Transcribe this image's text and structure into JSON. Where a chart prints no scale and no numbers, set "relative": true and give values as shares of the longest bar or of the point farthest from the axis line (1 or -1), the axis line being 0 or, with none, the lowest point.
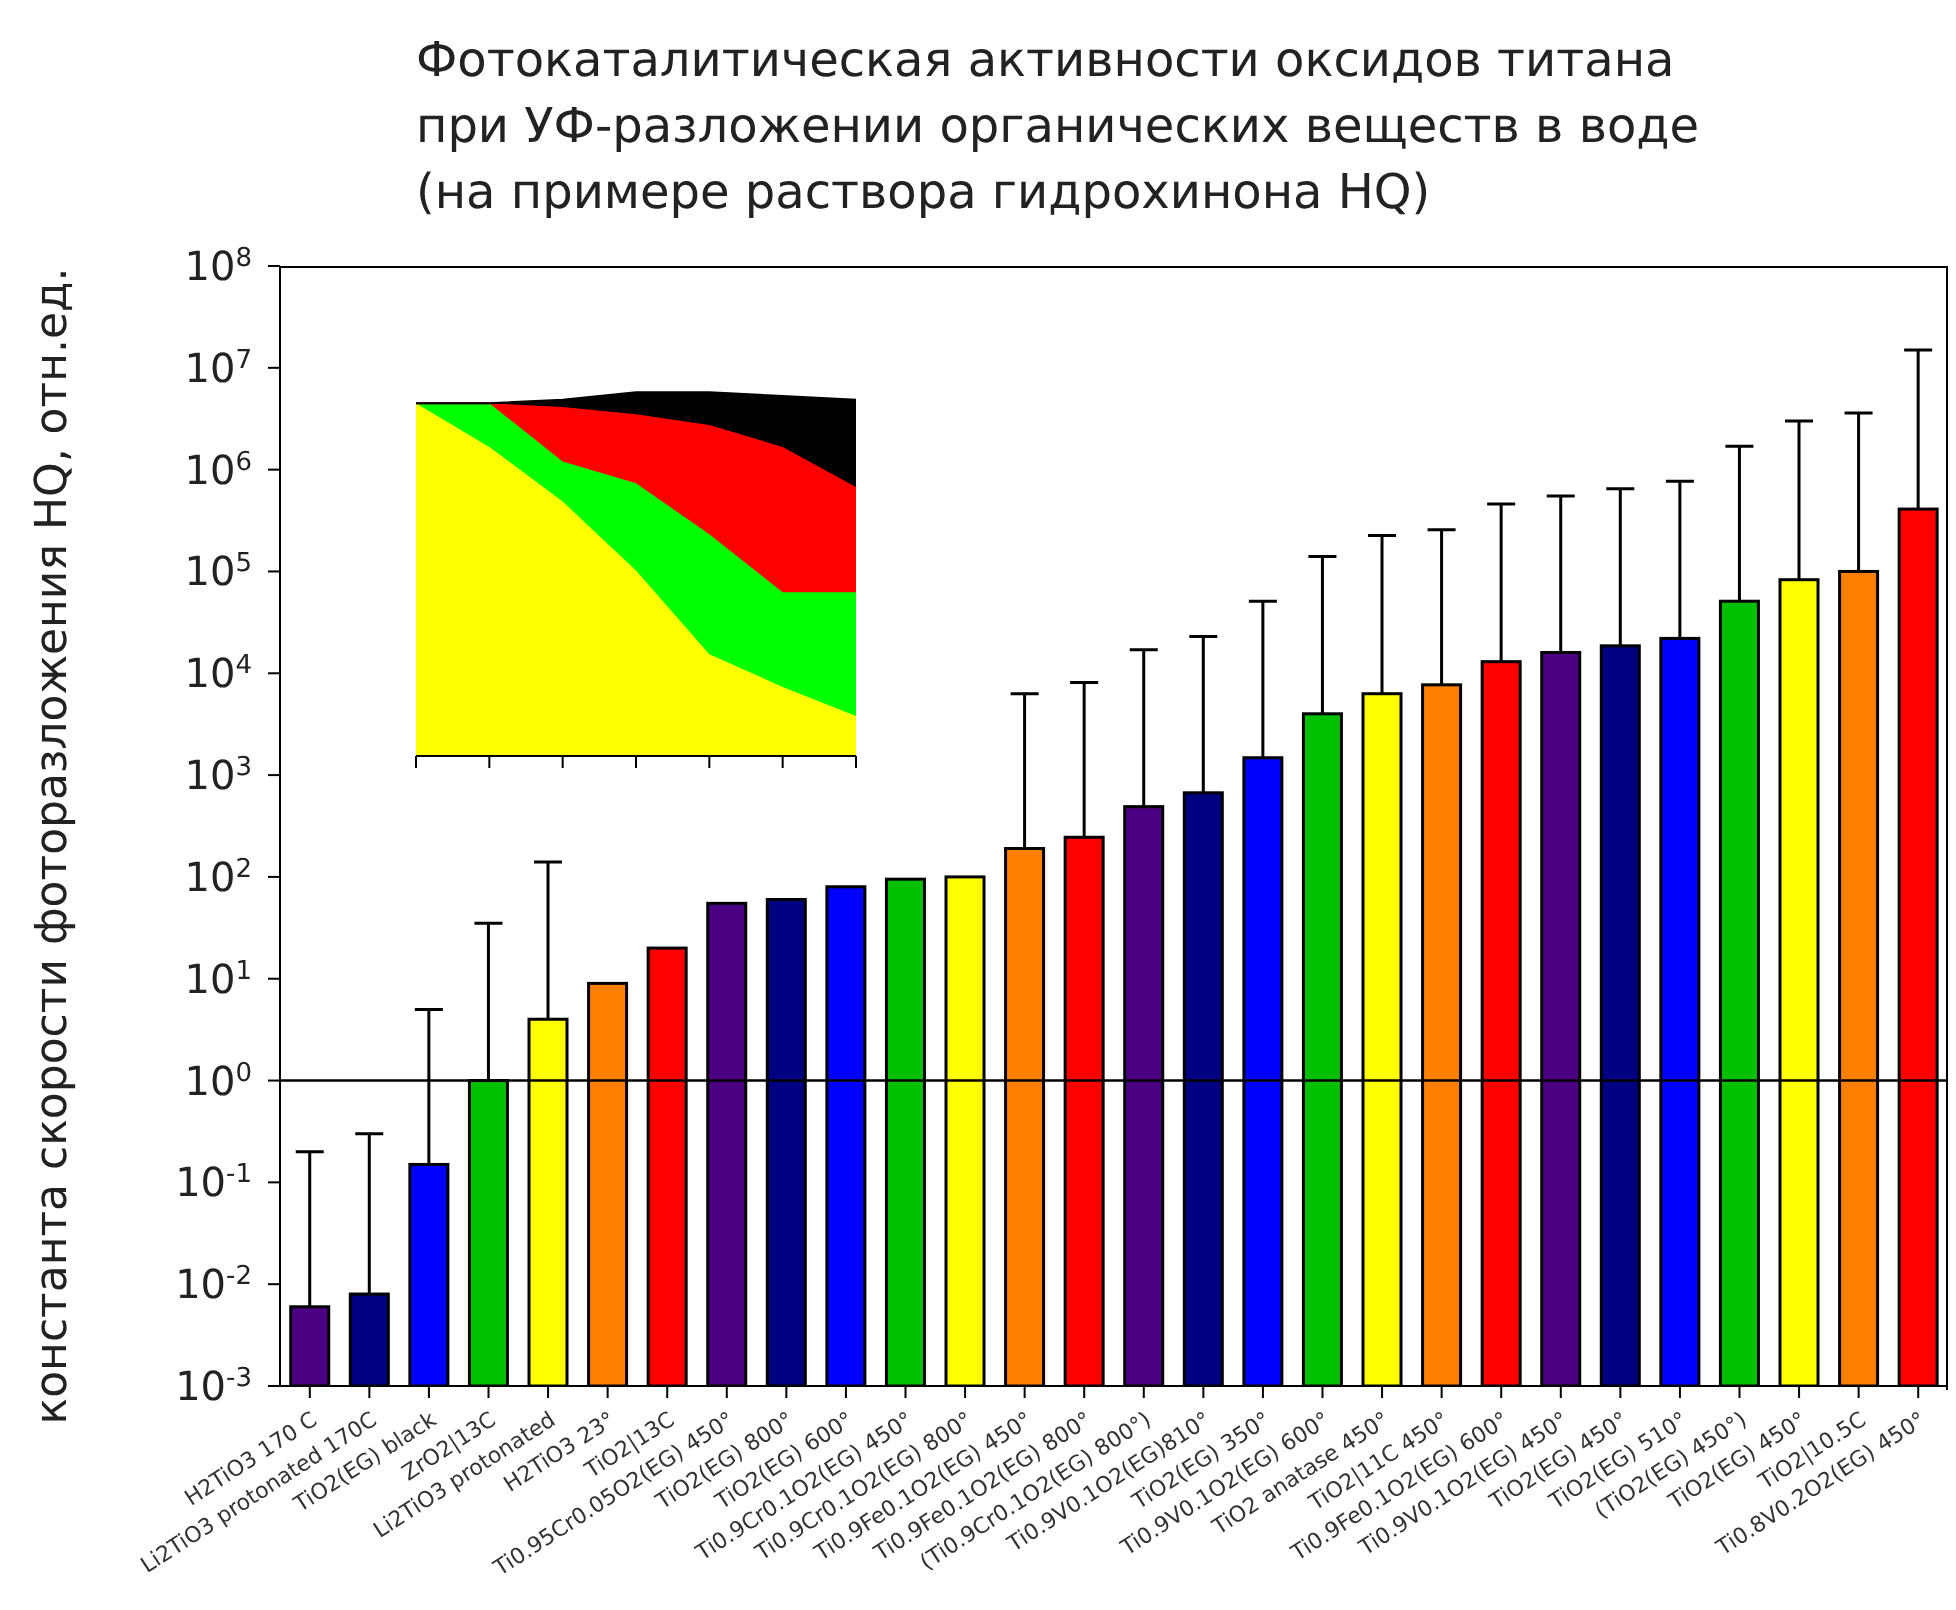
{
  "chart_data": [
    {
      "type": "bar",
      "title": "Фотокаталитическая активности оксидов титана\nпри УФ-разложении органических веществ в воде\n(на примере раствора гидрохинона HQ)",
      "ylabel": "константа скорости фоторазложения HQ, отн.ед.",
      "categories": [
        "H2TiO3 170 C",
        "Li2TiO3 protonated 170C",
        "TiO2(EG) black",
        "ZrO2|13C",
        "Li2TiO3 protonated",
        "H2TiO3 23°",
        "TiO2|13C",
        "Ti0.95Cr0.05O2(EG) 450°",
        "TiO2(EG) 800°",
        "TiO2(EG) 600°",
        "Ti0.9Cr0.1O2(EG) 450°",
        "Ti0.9Cr0.1O2(EG) 800°",
        "Ti0.9Fe0.1O2(EG) 450°",
        "Ti0.9Fe0.1O2(EG) 800°",
        "(Ti0.9Cr0.1O2(EG) 800°)",
        "Ti0.9V0.1O2(EG)810°",
        "TiO2(EG) 350°",
        "Ti0.9V0.1O2(EG) 600°",
        "TiO2 anatase 450°",
        "TiO2|11C 450°",
        "Ti0.9Fe0.1O2(EG) 600°",
        "Ti0.9V0.1O2(EG) 450°",
        "TiO2(EG) 450°",
        "TiO2(EG) 510°",
        "(TiO2(EG) 450°)",
        "TiO2(EG) 450°",
        "TiO2|10.5C",
        "Ti0.8V0.2O2(EG) 450°"
      ],
      "values": [
        0.006,
        0.008,
        0.15,
        1,
        4,
        9,
        20,
        55,
        60,
        80,
        95,
        100,
        190,
        245,
        490,
        670,
        1480,
        4000,
        6300,
        7700,
        13000,
        16000,
        18600,
        22000,
        51000,
        83000,
        100000,
        410000
      ],
      "colors": [
        "#4b0082",
        "#000080",
        "#0000ff",
        "#00c000",
        "#ffff00",
        "#ff8000",
        "#ff0000",
        "#4b0082",
        "#000080",
        "#0000ff",
        "#00c000",
        "#ffff00",
        "#ff8000",
        "#ff0000",
        "#4b0082",
        "#000080",
        "#0000ff",
        "#00c000",
        "#ffff00",
        "#ff8000",
        "#ff0000",
        "#4b0082",
        "#000080",
        "#0000ff",
        "#00c000",
        "#ffff00",
        "#ff8000",
        "#ff0000"
      ],
      "errors": [
        [
          0.006,
          0.2
        ],
        [
          0.008,
          0.3
        ],
        [
          0.15,
          5
        ],
        [
          1,
          35
        ],
        [
          4,
          140
        ],
        null,
        null,
        null,
        null,
        null,
        null,
        null,
        [
          190,
          6300
        ],
        [
          245,
          8100
        ],
        [
          490,
          17000
        ],
        [
          670,
          23000
        ],
        [
          1480,
          51000
        ],
        [
          4000,
          140000
        ],
        [
          6300,
          225000
        ],
        [
          7700,
          257000
        ],
        [
          13000,
          460000
        ],
        [
          16000,
          550000
        ],
        [
          18600,
          650000
        ],
        [
          22000,
          770000
        ],
        [
          51000,
          1700000
        ],
        [
          83000,
          3000000
        ],
        [
          100000,
          3600000
        ],
        [
          410000,
          15000000
        ]
      ],
      "log": true,
      "ylim": [
        0.001,
        100000000
      ],
      "yticks": [
        {
          "value": 0.001,
          "label": "10$^{-3}$"
        },
        {
          "value": 0.01,
          "label": "10$^{-2}$"
        },
        {
          "value": 0.1,
          "label": "10$^{-1}$"
        },
        {
          "value": 1,
          "label": "10$^{0}$"
        },
        {
          "value": 10,
          "label": "10$^{1}$"
        },
        {
          "value": 100,
          "label": "10$^{2}$"
        },
        {
          "value": 1000,
          "label": "10$^{3}$"
        },
        {
          "value": 10000,
          "label": "10$^{4}$"
        },
        {
          "value": 100000,
          "label": "10$^{5}$"
        },
        {
          "value": 1000000,
          "label": "10$^{6}$"
        },
        {
          "value": 10000000,
          "label": "10$^{7}$"
        },
        {
          "value": 100000000,
          "label": "10$^{8}$"
        }
      ],
      "ref_lines": [
        {
          "axis": "y",
          "value": 1,
          "color": "#000000"
        }
      ],
      "grid": false,
      "legend": false
    },
    {
      "type": "area",
      "relative": true,
      "stacked": true,
      "categories": [
        null,
        null,
        null,
        null,
        null,
        null,
        null
      ],
      "series": [
        {
          "color": "#ffff00",
          "values": [
            0.97,
            0.85,
            0.7,
            0.51,
            0.28,
            0.19,
            0.11
          ]
        },
        {
          "color": "#00ff00",
          "values": [
            0,
            0.12,
            0.11,
            0.24,
            0.33,
            0.26,
            0.34
          ]
        },
        {
          "color": "#ff0000",
          "values": [
            0,
            0,
            0.15,
            0.19,
            0.3,
            0.4,
            0.29
          ]
        },
        {
          "color": "#000000",
          "values": [
            0,
            0,
            0.02,
            0.06,
            0.09,
            0.14,
            0.24
          ]
        }
      ],
      "grid": false,
      "legend": false
    }
  ]
}
